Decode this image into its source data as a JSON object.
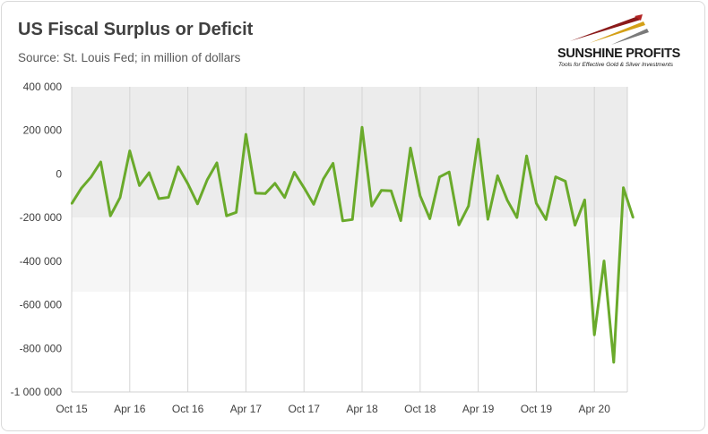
{
  "header": {
    "title": "US Fiscal Surplus or Deficit",
    "subtitle": "Source: St. Louis Fed; in million of dollars"
  },
  "logo": {
    "name": "SUNSHINE PROFITS",
    "tagline": "Tools for Effective Gold & Silver Investments",
    "colors": [
      "#8b1a1a",
      "#d4a017",
      "#7a7a7a"
    ]
  },
  "chart_data": {
    "type": "line",
    "title": "US Fiscal Surplus or Deficit",
    "subtitle": "Source: St. Louis Fed; in million of dollars",
    "xlabel": "",
    "ylabel": "",
    "ylim": [
      -1000000,
      400000
    ],
    "yticks": [
      400000,
      200000,
      0,
      -200000,
      -400000,
      -600000,
      -800000,
      -1000000
    ],
    "ytick_labels": [
      "400 000",
      "200 000",
      "0",
      "-200 000",
      "-400 000",
      "-600 000",
      "-800 000",
      "-1 000 000"
    ],
    "xtick_labels": [
      "Oct 15",
      "Apr 16",
      "Oct 16",
      "Apr 17",
      "Oct 17",
      "Apr 18",
      "Oct 18",
      "Apr 19",
      "Oct 19",
      "Apr 20"
    ],
    "grid": "vertical",
    "legend": "none",
    "line_color": "#6aaa2b",
    "series": [
      {
        "x": [
          "2015-10",
          "2015-11",
          "2015-12",
          "2016-01",
          "2016-02",
          "2016-03",
          "2016-04",
          "2016-05",
          "2016-06",
          "2016-07",
          "2016-08",
          "2016-09",
          "2016-10",
          "2016-11",
          "2016-12",
          "2017-01",
          "2017-02",
          "2017-03",
          "2017-04",
          "2017-05",
          "2017-06",
          "2017-07",
          "2017-08",
          "2017-09",
          "2017-10",
          "2017-11",
          "2017-12",
          "2018-01",
          "2018-02",
          "2018-03",
          "2018-04",
          "2018-05",
          "2018-06",
          "2018-07",
          "2018-08",
          "2018-09",
          "2018-10",
          "2018-11",
          "2018-12",
          "2019-01",
          "2019-02",
          "2019-03",
          "2019-04",
          "2019-05",
          "2019-06",
          "2019-07",
          "2019-08",
          "2019-09",
          "2019-10",
          "2019-11",
          "2019-12",
          "2020-01",
          "2020-02",
          "2020-03",
          "2020-04",
          "2020-05",
          "2020-06",
          "2020-07",
          "2020-08"
        ],
        "values": [
          -136000,
          -65000,
          -14000,
          55000,
          -192000,
          -108000,
          106000,
          -53000,
          6000,
          -113000,
          -107000,
          33000,
          -45000,
          -137000,
          -27000,
          51000,
          -192000,
          -176000,
          182000,
          -88000,
          -90000,
          -43000,
          -108000,
          8000,
          -63000,
          -139000,
          -23000,
          49000,
          -215000,
          -209000,
          214000,
          -147000,
          -75000,
          -77000,
          -214000,
          119000,
          -100000,
          -205000,
          -14000,
          9000,
          -234000,
          -147000,
          160000,
          -208000,
          -8000,
          -120000,
          -200000,
          83000,
          -134000,
          -209000,
          -13000,
          -33000,
          -235000,
          -119000,
          -738000,
          -399000,
          -864000,
          -63000,
          -200000
        ]
      }
    ]
  }
}
